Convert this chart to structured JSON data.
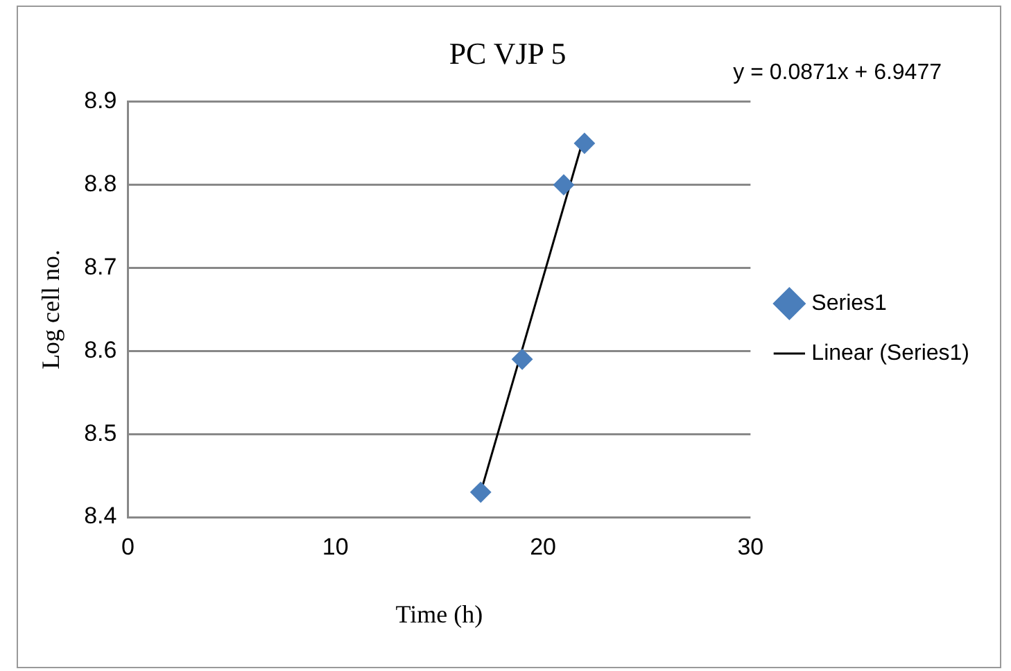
{
  "chart_data": {
    "type": "scatter",
    "title": "PC VJP 5",
    "xlabel": "Time (h)",
    "ylabel": "Log cell no.",
    "annotations": [
      "y = 0.0871x + 6.9477"
    ],
    "series": [
      {
        "name": "Series1",
        "color": "#4a7ebb",
        "marker": "diamond",
        "x": [
          17,
          19,
          21,
          22
        ],
        "values": [
          8.43,
          8.59,
          8.8,
          8.85
        ]
      },
      {
        "name": "Linear (Series1)",
        "type": "line",
        "color": "#000000",
        "marker": "none",
        "line_style": "solid",
        "x": [
          17,
          22
        ],
        "values": [
          8.43,
          8.86
        ]
      }
    ],
    "xlim": [
      0,
      30
    ],
    "xticks": [
      0,
      10,
      20,
      30
    ],
    "ylim": [
      8.4,
      8.9
    ],
    "yticks": [
      8.4,
      8.5,
      8.6,
      8.7,
      8.8,
      8.9
    ],
    "grid": "y",
    "legend": "right"
  }
}
